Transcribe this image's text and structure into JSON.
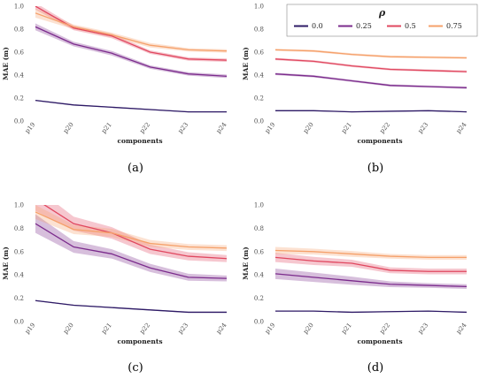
{
  "chart_data": [
    {
      "type": "line",
      "panel_label": "(a)",
      "xlabel": "components",
      "ylabel": "MAE (m)",
      "categories": [
        "p19",
        "p20",
        "p21",
        "p22",
        "p23",
        "p24"
      ],
      "ylim": [
        0,
        1.0
      ],
      "yticks": [
        "0.0",
        "0.2",
        "0.4",
        "0.6",
        "0.8",
        "1.0"
      ],
      "grid": false,
      "series": [
        {
          "name": "0.0",
          "color": "#2e1a66",
          "values": [
            0.18,
            0.14,
            0.12,
            0.1,
            0.08,
            0.08
          ],
          "band": [
            0.005,
            0.005,
            0.005,
            0.005,
            0.005,
            0.005
          ]
        },
        {
          "name": "0.25",
          "color": "#7b2b8c",
          "values": [
            0.82,
            0.67,
            0.59,
            0.47,
            0.41,
            0.39
          ],
          "band": [
            0.03,
            0.02,
            0.02,
            0.015,
            0.015,
            0.015
          ]
        },
        {
          "name": "0.5",
          "color": "#e0475f",
          "values": [
            1.0,
            0.81,
            0.74,
            0.6,
            0.54,
            0.53
          ],
          "band": [
            0.03,
            0.02,
            0.02,
            0.015,
            0.015,
            0.015
          ]
        },
        {
          "name": "0.75",
          "color": "#f5a06a",
          "values": [
            0.94,
            0.82,
            0.75,
            0.66,
            0.62,
            0.61
          ],
          "band": [
            0.04,
            0.02,
            0.02,
            0.02,
            0.015,
            0.015
          ]
        }
      ]
    },
    {
      "type": "line",
      "panel_label": "(b)",
      "xlabel": "components",
      "ylabel": "MAE (m)",
      "categories": [
        "p19",
        "p20",
        "p21",
        "p22",
        "p23",
        "p24"
      ],
      "ylim": [
        0,
        1.0
      ],
      "yticks": [
        "0.0",
        "0.2",
        "0.4",
        "0.6",
        "0.8",
        "1.0"
      ],
      "grid": false,
      "legend": {
        "title": "ρ",
        "placement": "top-right",
        "entries": [
          "0.0",
          "0.25",
          "0.5",
          "0.75"
        ]
      },
      "series": [
        {
          "name": "0.0",
          "color": "#2e1a66",
          "values": [
            0.09,
            0.09,
            0.08,
            0.085,
            0.09,
            0.08
          ],
          "band": [
            0.004,
            0.004,
            0.004,
            0.004,
            0.004,
            0.004
          ]
        },
        {
          "name": "0.25",
          "color": "#7b2b8c",
          "values": [
            0.41,
            0.39,
            0.35,
            0.31,
            0.3,
            0.29
          ],
          "band": [
            0.01,
            0.01,
            0.01,
            0.01,
            0.01,
            0.01
          ]
        },
        {
          "name": "0.5",
          "color": "#e0475f",
          "values": [
            0.54,
            0.52,
            0.48,
            0.45,
            0.44,
            0.43
          ],
          "band": [
            0.01,
            0.01,
            0.01,
            0.01,
            0.01,
            0.01
          ]
        },
        {
          "name": "0.75",
          "color": "#f5a06a",
          "values": [
            0.62,
            0.61,
            0.58,
            0.56,
            0.555,
            0.55
          ],
          "band": [
            0.01,
            0.01,
            0.01,
            0.01,
            0.01,
            0.01
          ]
        }
      ]
    },
    {
      "type": "line",
      "panel_label": "(c)",
      "xlabel": "components",
      "ylabel": "MAE (m)",
      "categories": [
        "p19",
        "p20",
        "p21",
        "p22",
        "p23",
        "p24"
      ],
      "ylim": [
        0,
        1.0
      ],
      "yticks": [
        "0.0",
        "0.2",
        "0.4",
        "0.6",
        "0.8",
        "1.0"
      ],
      "grid": false,
      "series": [
        {
          "name": "0.0",
          "color": "#2e1a66",
          "values": [
            0.18,
            0.14,
            0.12,
            0.1,
            0.08,
            0.08
          ],
          "band": [
            0.005,
            0.005,
            0.005,
            0.005,
            0.005,
            0.005
          ]
        },
        {
          "name": "0.25",
          "color": "#7b2b8c",
          "values": [
            0.84,
            0.64,
            0.58,
            0.46,
            0.38,
            0.37
          ],
          "band": [
            0.08,
            0.05,
            0.04,
            0.035,
            0.03,
            0.025
          ]
        },
        {
          "name": "0.5",
          "color": "#e0475f",
          "values": [
            1.05,
            0.84,
            0.76,
            0.62,
            0.56,
            0.54
          ],
          "band": [
            0.1,
            0.06,
            0.05,
            0.04,
            0.035,
            0.03
          ]
        },
        {
          "name": "0.75",
          "color": "#f5a06a",
          "values": [
            0.94,
            0.79,
            0.76,
            0.67,
            0.64,
            0.63
          ],
          "band": [
            0.06,
            0.04,
            0.035,
            0.03,
            0.025,
            0.025
          ]
        }
      ]
    },
    {
      "type": "line",
      "panel_label": "(d)",
      "xlabel": "components",
      "ylabel": "MAE (m)",
      "categories": [
        "p19",
        "p20",
        "p21",
        "p22",
        "p23",
        "p24"
      ],
      "ylim": [
        0,
        1.0
      ],
      "yticks": [
        "0.0",
        "0.2",
        "0.4",
        "0.6",
        "0.8",
        "1.0"
      ],
      "grid": false,
      "series": [
        {
          "name": "0.0",
          "color": "#2e1a66",
          "values": [
            0.09,
            0.09,
            0.08,
            0.085,
            0.09,
            0.08
          ],
          "band": [
            0.004,
            0.004,
            0.004,
            0.004,
            0.004,
            0.004
          ]
        },
        {
          "name": "0.25",
          "color": "#7b2b8c",
          "values": [
            0.41,
            0.38,
            0.35,
            0.32,
            0.31,
            0.3
          ],
          "band": [
            0.045,
            0.04,
            0.035,
            0.025,
            0.02,
            0.02
          ]
        },
        {
          "name": "0.5",
          "color": "#e0475f",
          "values": [
            0.55,
            0.52,
            0.5,
            0.44,
            0.43,
            0.43
          ],
          "band": [
            0.04,
            0.035,
            0.03,
            0.025,
            0.025,
            0.025
          ]
        },
        {
          "name": "0.75",
          "color": "#f5a06a",
          "values": [
            0.61,
            0.6,
            0.58,
            0.56,
            0.55,
            0.55
          ],
          "band": [
            0.03,
            0.025,
            0.025,
            0.02,
            0.02,
            0.02
          ]
        }
      ]
    }
  ]
}
